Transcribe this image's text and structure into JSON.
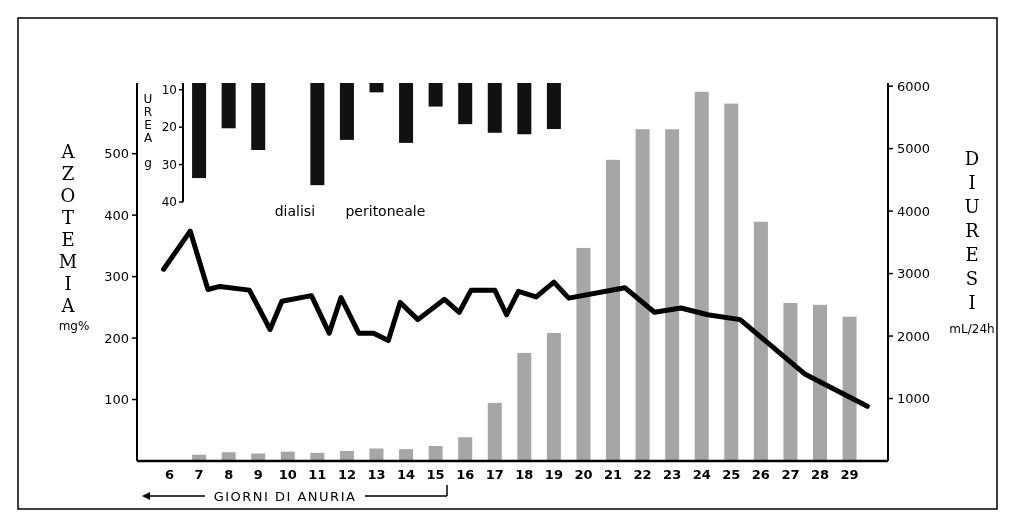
{
  "chart_data": {
    "type": "bar",
    "xlabel": "GIORNI DI ANURIA",
    "ylabel": "AZOTEMIA mg%",
    "y2label": "DIURESI mL/24h",
    "y3label": "UREA g",
    "annotations": [
      "dialisi peritoneale"
    ],
    "xlim": [
      4.9,
      30.3
    ],
    "xticks": [
      6,
      7,
      8,
      9,
      10,
      11,
      12,
      13,
      14,
      15,
      16,
      17,
      18,
      19,
      20,
      21,
      22,
      23,
      24,
      25,
      26,
      27,
      28,
      29
    ],
    "ylim": [
      0,
      615
    ],
    "yticks": [
      100,
      200,
      300,
      400,
      500
    ],
    "y2lim": [
      0,
      6050
    ],
    "y2ticks": [
      1000,
      2000,
      3000,
      4000,
      5000,
      6000
    ],
    "y3lim": [
      40,
      8.2
    ],
    "y3ticks": [
      10,
      20,
      30,
      40
    ],
    "series": [
      {
        "axis": "y2",
        "color": "#a6a6a6",
        "x": [
          7,
          8,
          9,
          10,
          11,
          12,
          13,
          14,
          15,
          16,
          17,
          18,
          19,
          20,
          21,
          22,
          23,
          24,
          25,
          26,
          27,
          28,
          29
        ],
        "values": [
          100,
          140,
          120,
          150,
          130,
          160,
          200,
          190,
          240,
          380,
          930,
          1730,
          2050,
          3410,
          4820,
          5310,
          5310,
          5910,
          5720,
          3830,
          2530,
          2500,
          2310
        ]
      },
      {
        "axis": "y3",
        "color": "#111111",
        "x": [
          7,
          8,
          9,
          11,
          12,
          13,
          14,
          15,
          16,
          17,
          18,
          19
        ],
        "values": [
          33.6,
          20.3,
          26.1,
          35.5,
          23.4,
          10.7,
          24.2,
          14.5,
          19.2,
          21.5,
          21.9,
          20.5
        ]
      },
      {
        "type": "line",
        "axis": "y",
        "color": "#000000",
        "x": [
          5.8,
          6.7,
          7.3,
          7.7,
          8.7,
          9.4,
          9.8,
          10.8,
          11.4,
          11.8,
          12.4,
          12.9,
          13.4,
          13.8,
          14.4,
          15.3,
          15.8,
          16.2,
          17.0,
          17.4,
          17.8,
          18.4,
          19.0,
          19.5,
          21.4,
          22.4,
          23.3,
          24.2,
          25.3,
          27.5,
          29.6
        ],
        "values": [
          312,
          374,
          279,
          284,
          278,
          214,
          260,
          269,
          208,
          266,
          208,
          208,
          196,
          258,
          230,
          263,
          242,
          278,
          278,
          238,
          276,
          267,
          291,
          265,
          282,
          242,
          249,
          238,
          230,
          141,
          89
        ]
      }
    ]
  }
}
